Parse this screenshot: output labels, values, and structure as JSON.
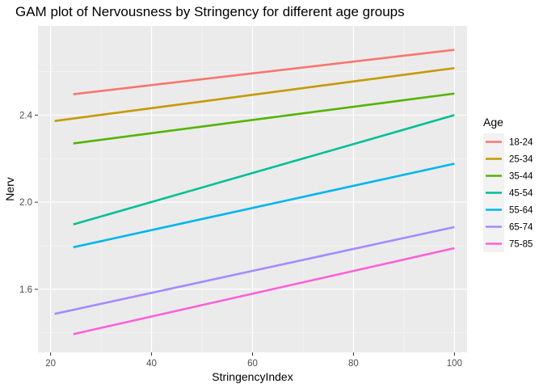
{
  "chart_data": {
    "type": "line",
    "title": "GAM plot of Nervousness by Stringency for different age groups",
    "xlabel": "StringencyIndex",
    "ylabel": "Nerv",
    "xlim": [
      17.5,
      102.5
    ],
    "ylim": [
      1.31,
      2.81
    ],
    "x_ticks": [
      20,
      40,
      60,
      80,
      100
    ],
    "x_tick_labels": [
      "20",
      "40",
      "60",
      "80",
      "100"
    ],
    "y_ticks": [
      1.6,
      2.0,
      2.4
    ],
    "y_tick_labels": [
      "1.6",
      "2.0",
      "2.4"
    ],
    "grid": true,
    "legend": {
      "title": "Age",
      "position": "right"
    },
    "series": [
      {
        "name": "18-24",
        "color": "#F8766D",
        "x": [
          24.5,
          100
        ],
        "y": [
          2.496,
          2.7
        ]
      },
      {
        "name": "25-34",
        "color": "#C49A00",
        "x": [
          20.8,
          100
        ],
        "y": [
          2.373,
          2.616
        ]
      },
      {
        "name": "35-44",
        "color": "#53B400",
        "x": [
          24.5,
          100
        ],
        "y": [
          2.27,
          2.499
        ]
      },
      {
        "name": "45-54",
        "color": "#00C094",
        "x": [
          24.5,
          100
        ],
        "y": [
          1.898,
          2.4
        ]
      },
      {
        "name": "55-64",
        "color": "#00B6EB",
        "x": [
          24.5,
          100
        ],
        "y": [
          1.793,
          2.177
        ]
      },
      {
        "name": "65-74",
        "color": "#A58AFF",
        "x": [
          20.8,
          100
        ],
        "y": [
          1.487,
          1.886
        ]
      },
      {
        "name": "75-85",
        "color": "#FB61D7",
        "x": [
          24.5,
          100
        ],
        "y": [
          1.394,
          1.789
        ]
      }
    ]
  }
}
